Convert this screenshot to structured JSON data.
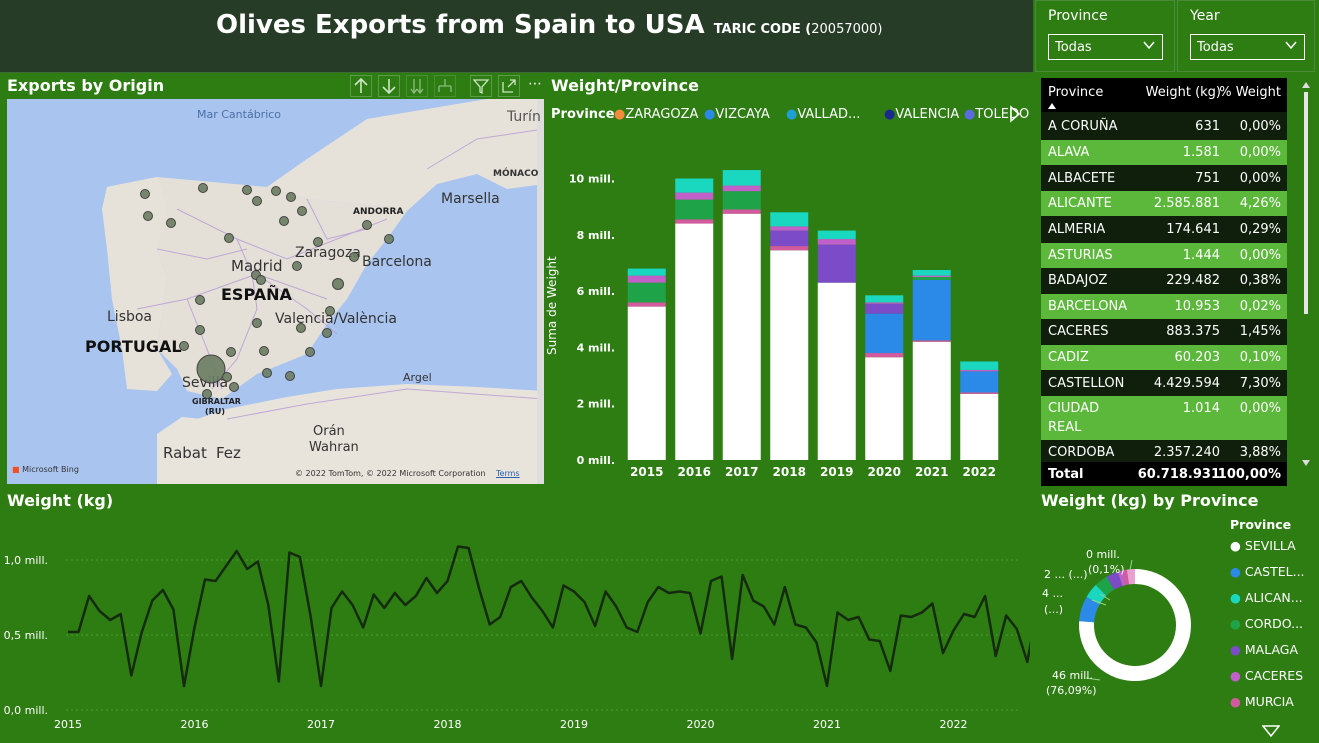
{
  "header": {
    "title": "Olives Exports from Spain to USA",
    "subtitle": "TARIC CODE (",
    "code": "20057000)"
  },
  "slicers": {
    "province": {
      "label": "Province",
      "value": "Todas"
    },
    "year": {
      "label": "Year",
      "value": "Todas"
    }
  },
  "map_panel": {
    "title": "Exports by Origin",
    "labels": {
      "sea": "Mar Cantábrico",
      "turin": "Turín",
      "monaco": "MÓNACO",
      "marsella": "Marsella",
      "andorra": "ANDORRA",
      "zaragoza": "Zaragoza",
      "barcelona": "Barcelona",
      "madrid": "Madrid",
      "espana": "ESPAÑA",
      "lisboa": "Lisboa",
      "portugal": "PORTUGAL",
      "valencia": "Valencia/València",
      "sevilla": "Sevilla",
      "gibraltar": "GIBRALTAR",
      "gibraltar_ru": "(RU)",
      "argel": "Argel",
      "oran": "Orán",
      "wahran": "Wahran",
      "rabat": "Rabat",
      "fez": "Fez",
      "bing": "Microsoft Bing",
      "copyright": "© 2022 TomTom, © 2022 Microsoft Corporation",
      "terms": "Terms"
    }
  },
  "bar_panel": {
    "title": "Weight/Province",
    "legend_title": "Province",
    "ylabel": "Suma de Weight"
  },
  "table": {
    "headers": [
      "Province",
      "Weight (kg)",
      "% Weight"
    ],
    "rows": [
      [
        "A CORUÑA",
        "631",
        "0,00%"
      ],
      [
        "ALAVA",
        "1.581",
        "0,00%"
      ],
      [
        "ALBACETE",
        "751",
        "0,00%"
      ],
      [
        "ALICANTE",
        "2.585.881",
        "4,26%"
      ],
      [
        "ALMERIA",
        "174.641",
        "0,29%"
      ],
      [
        "ASTURIAS",
        "1.444",
        "0,00%"
      ],
      [
        "BADAJOZ",
        "229.482",
        "0,38%"
      ],
      [
        "BARCELONA",
        "10.953",
        "0,02%"
      ],
      [
        "CACERES",
        "883.375",
        "1,45%"
      ],
      [
        "CADIZ",
        "60.203",
        "0,10%"
      ],
      [
        "CASTELLON",
        "4.429.594",
        "7,30%"
      ],
      [
        "CIUDAD",
        "1.014",
        "0,00%"
      ],
      [
        "REAL",
        "",
        ""
      ],
      [
        "CORDOBA",
        "2.357.240",
        "3,88%"
      ]
    ],
    "total": [
      "Total",
      "60.718.931",
      "100,00%"
    ]
  },
  "line_panel": {
    "title": "Weight (kg)"
  },
  "donut_panel": {
    "title": "Weight (kg) by Province",
    "legend_title": "Province",
    "labels": {
      "l1a": "0 mill.",
      "l1b": "(0,1%)",
      "l2": "2 ... (...)",
      "l3a": "4 ...",
      "l3b": "(...)",
      "l4a": "46 mill.",
      "l4b": "(76,09%)"
    }
  },
  "chart_data": [
    {
      "type": "bar",
      "title": "Weight/Province",
      "ylabel": "Suma de Weight",
      "categories": [
        "2015",
        "2016",
        "2017",
        "2018",
        "2019",
        "2020",
        "2021",
        "2022"
      ],
      "yticks": [
        "0 mill.",
        "2 mill.",
        "4 mill.",
        "6 mill.",
        "8 mill.",
        "10 mill."
      ],
      "ylim": [
        0,
        10.8
      ],
      "legend": [
        {
          "name": "ZARAGOZA",
          "color": "#f28c3c"
        },
        {
          "name": "VIZCAYA",
          "color": "#2b8ae8"
        },
        {
          "name": "VALLAD...",
          "color": "#1f9fd6"
        },
        {
          "name": "VALENCIA",
          "color": "#1a2a8c"
        },
        {
          "name": "TOLEDO",
          "color": "#5a6be0"
        }
      ],
      "series": [
        {
          "name": "SEVILLA",
          "color": "#ffffff",
          "values": [
            5.45,
            8.4,
            8.75,
            7.45,
            6.3,
            3.65,
            4.2,
            2.35
          ]
        },
        {
          "name": "MURCIA",
          "color": "#d45aa0",
          "values": [
            0.15,
            0.15,
            0.15,
            0.15,
            0.0,
            0.15,
            0.05,
            0.05
          ]
        },
        {
          "name": "CASTELLON",
          "color": "#2b8ae8",
          "values": [
            0.0,
            0.0,
            0.0,
            0.0,
            0.0,
            1.4,
            2.15,
            0.75
          ]
        },
        {
          "name": "CORDOBA",
          "color": "#1fa348",
          "values": [
            0.7,
            0.7,
            0.65,
            0.0,
            0.0,
            0.0,
            0.1,
            0.0
          ]
        },
        {
          "name": "MALAGA",
          "color": "#7b4bc8",
          "values": [
            0.0,
            0.0,
            0.0,
            0.55,
            1.35,
            0.35,
            0.0,
            0.0
          ]
        },
        {
          "name": "CACERES",
          "color": "#c060c8",
          "values": [
            0.25,
            0.25,
            0.2,
            0.15,
            0.2,
            0.05,
            0.05,
            0.05
          ]
        },
        {
          "name": "ALICANTE",
          "color": "#1ad8c0",
          "values": [
            0.25,
            0.5,
            0.55,
            0.5,
            0.3,
            0.25,
            0.2,
            0.3
          ]
        }
      ]
    },
    {
      "type": "line",
      "title": "Weight (kg)",
      "xticks": [
        "2015",
        "2016",
        "2017",
        "2018",
        "2019",
        "2020",
        "2021",
        "2022"
      ],
      "yticks": [
        "0,0 mill.",
        "0,5 mill.",
        "1,0 mill."
      ],
      "ylim": [
        0,
        1.2
      ],
      "x_start_year": 2015,
      "values": [
        0.52,
        0.52,
        0.76,
        0.66,
        0.6,
        0.64,
        0.23,
        0.52,
        0.73,
        0.8,
        0.67,
        0.16,
        0.55,
        0.87,
        0.86,
        0.96,
        1.06,
        0.94,
        0.99,
        0.7,
        0.19,
        1.05,
        1.02,
        0.63,
        0.16,
        0.68,
        0.79,
        0.7,
        0.55,
        0.77,
        0.68,
        0.78,
        0.7,
        0.76,
        0.88,
        0.78,
        0.86,
        1.09,
        1.08,
        0.81,
        0.57,
        0.62,
        0.82,
        0.86,
        0.75,
        0.66,
        0.55,
        0.83,
        0.79,
        0.72,
        0.56,
        0.79,
        0.69,
        0.55,
        0.52,
        0.72,
        0.82,
        0.78,
        0.79,
        0.78,
        0.51,
        0.86,
        0.89,
        0.34,
        0.9,
        0.73,
        0.69,
        0.57,
        0.82,
        0.57,
        0.55,
        0.45,
        0.16,
        0.65,
        0.6,
        0.62,
        0.47,
        0.46,
        0.26,
        0.63,
        0.62,
        0.65,
        0.71,
        0.38,
        0.53,
        0.64,
        0.62,
        0.76,
        0.36,
        0.63,
        0.54,
        0.32,
        0.7,
        0.6,
        0.66,
        0.72,
        0.68,
        0.45,
        0.49,
        0.4,
        0.55,
        0.31,
        0.66,
        0.75,
        0.67,
        0.27
      ]
    },
    {
      "type": "pie",
      "title": "Weight (kg) by Province",
      "slices": [
        {
          "name": "SEVILLA",
          "value": 76.09,
          "color": "#ffffff"
        },
        {
          "name": "CASTEL...",
          "value": 7.3,
          "color": "#2b8ae8"
        },
        {
          "name": "ALICAN...",
          "value": 4.26,
          "color": "#1ad8c0"
        },
        {
          "name": "CORDO...",
          "value": 3.88,
          "color": "#1fa348"
        },
        {
          "name": "MALAGA",
          "value": 3.5,
          "color": "#7b4bc8"
        },
        {
          "name": "CACERES",
          "value": 1.45,
          "color": "#c060c8"
        },
        {
          "name": "MURCIA",
          "value": 1.2,
          "color": "#d45aa0"
        },
        {
          "name": "OTHER",
          "value": 2.32,
          "color": "#e8a0d0"
        }
      ],
      "legend": [
        "SEVILLA",
        "CASTEL...",
        "ALICAN...",
        "CORDO...",
        "MALAGA",
        "CACERES",
        "MURCIA"
      ]
    }
  ]
}
